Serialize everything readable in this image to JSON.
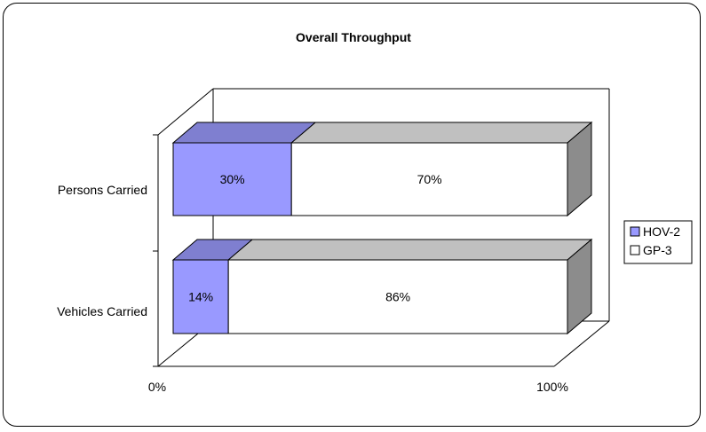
{
  "chart_data": {
    "type": "bar",
    "orientation": "horizontal",
    "stacked": "100%",
    "three_d": true,
    "title": "Overall Throughput",
    "categories": [
      "Persons Carried",
      "Vehicles Carried"
    ],
    "series": [
      {
        "name": "HOV-2",
        "values": [
          30,
          14
        ],
        "labels": [
          "30%",
          "14%"
        ]
      },
      {
        "name": "GP-3",
        "values": [
          70,
          86
        ],
        "labels": [
          "70%",
          "86%"
        ]
      }
    ],
    "xlim": [
      0,
      100
    ],
    "x_ticks": [
      "0%",
      "100%"
    ],
    "legend_position": "right",
    "colors": {
      "HOV-2": "#9999ff",
      "HOV-2_top": "#7f7fd0",
      "GP-3": "#ffffff",
      "GP-3_top": "#c0c0c0",
      "GP-3_side": "#8c8c8c"
    }
  }
}
